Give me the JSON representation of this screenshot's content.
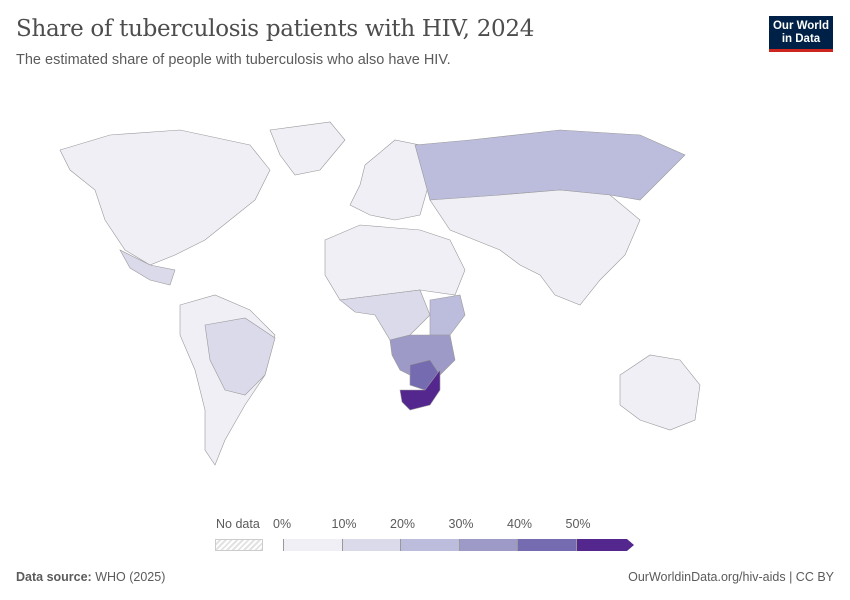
{
  "header": {
    "title": "Share of tuberculosis patients with HIV, 2024",
    "subtitle": "The estimated share of people with tuberculosis who also have HIV.",
    "logo": "Our World in Data"
  },
  "colors": {
    "bins": [
      "#f0eff6",
      "#dadaeb",
      "#bcbddc",
      "#9e9ac8",
      "#756bb1",
      "#54278f"
    ],
    "no_data": "#e2e2e2",
    "border": "#999999"
  },
  "legend": {
    "no_data_label": "No data",
    "ticks": [
      "0%",
      "10%",
      "20%",
      "30%",
      "40%",
      "50%"
    ]
  },
  "map": {
    "regions": [
      {
        "name": "North America",
        "bin": 0
      },
      {
        "name": "Greenland",
        "bin": 0
      },
      {
        "name": "Mexico",
        "bin": 1
      },
      {
        "name": "South America",
        "bin": 0
      },
      {
        "name": "Brazil",
        "bin": 1
      },
      {
        "name": "Europe",
        "bin": 0
      },
      {
        "name": "Russia",
        "bin": 2
      },
      {
        "name": "Asia",
        "bin": 0
      },
      {
        "name": "North Africa",
        "bin": 0
      },
      {
        "name": "Central Africa",
        "bin": 1
      },
      {
        "name": "East Africa",
        "bin": 2
      },
      {
        "name": "Southern Africa",
        "bin": 3
      },
      {
        "name": "Botswana/Zimbabwe",
        "bin": 4
      },
      {
        "name": "South Africa/Eswatini/Lesotho",
        "bin": 5
      },
      {
        "name": "Australia",
        "bin": 0
      }
    ]
  },
  "footer": {
    "source_label": "Data source:",
    "source": "WHO (2025)",
    "link": "OurWorldinData.org/hiv-aids | CC BY"
  }
}
